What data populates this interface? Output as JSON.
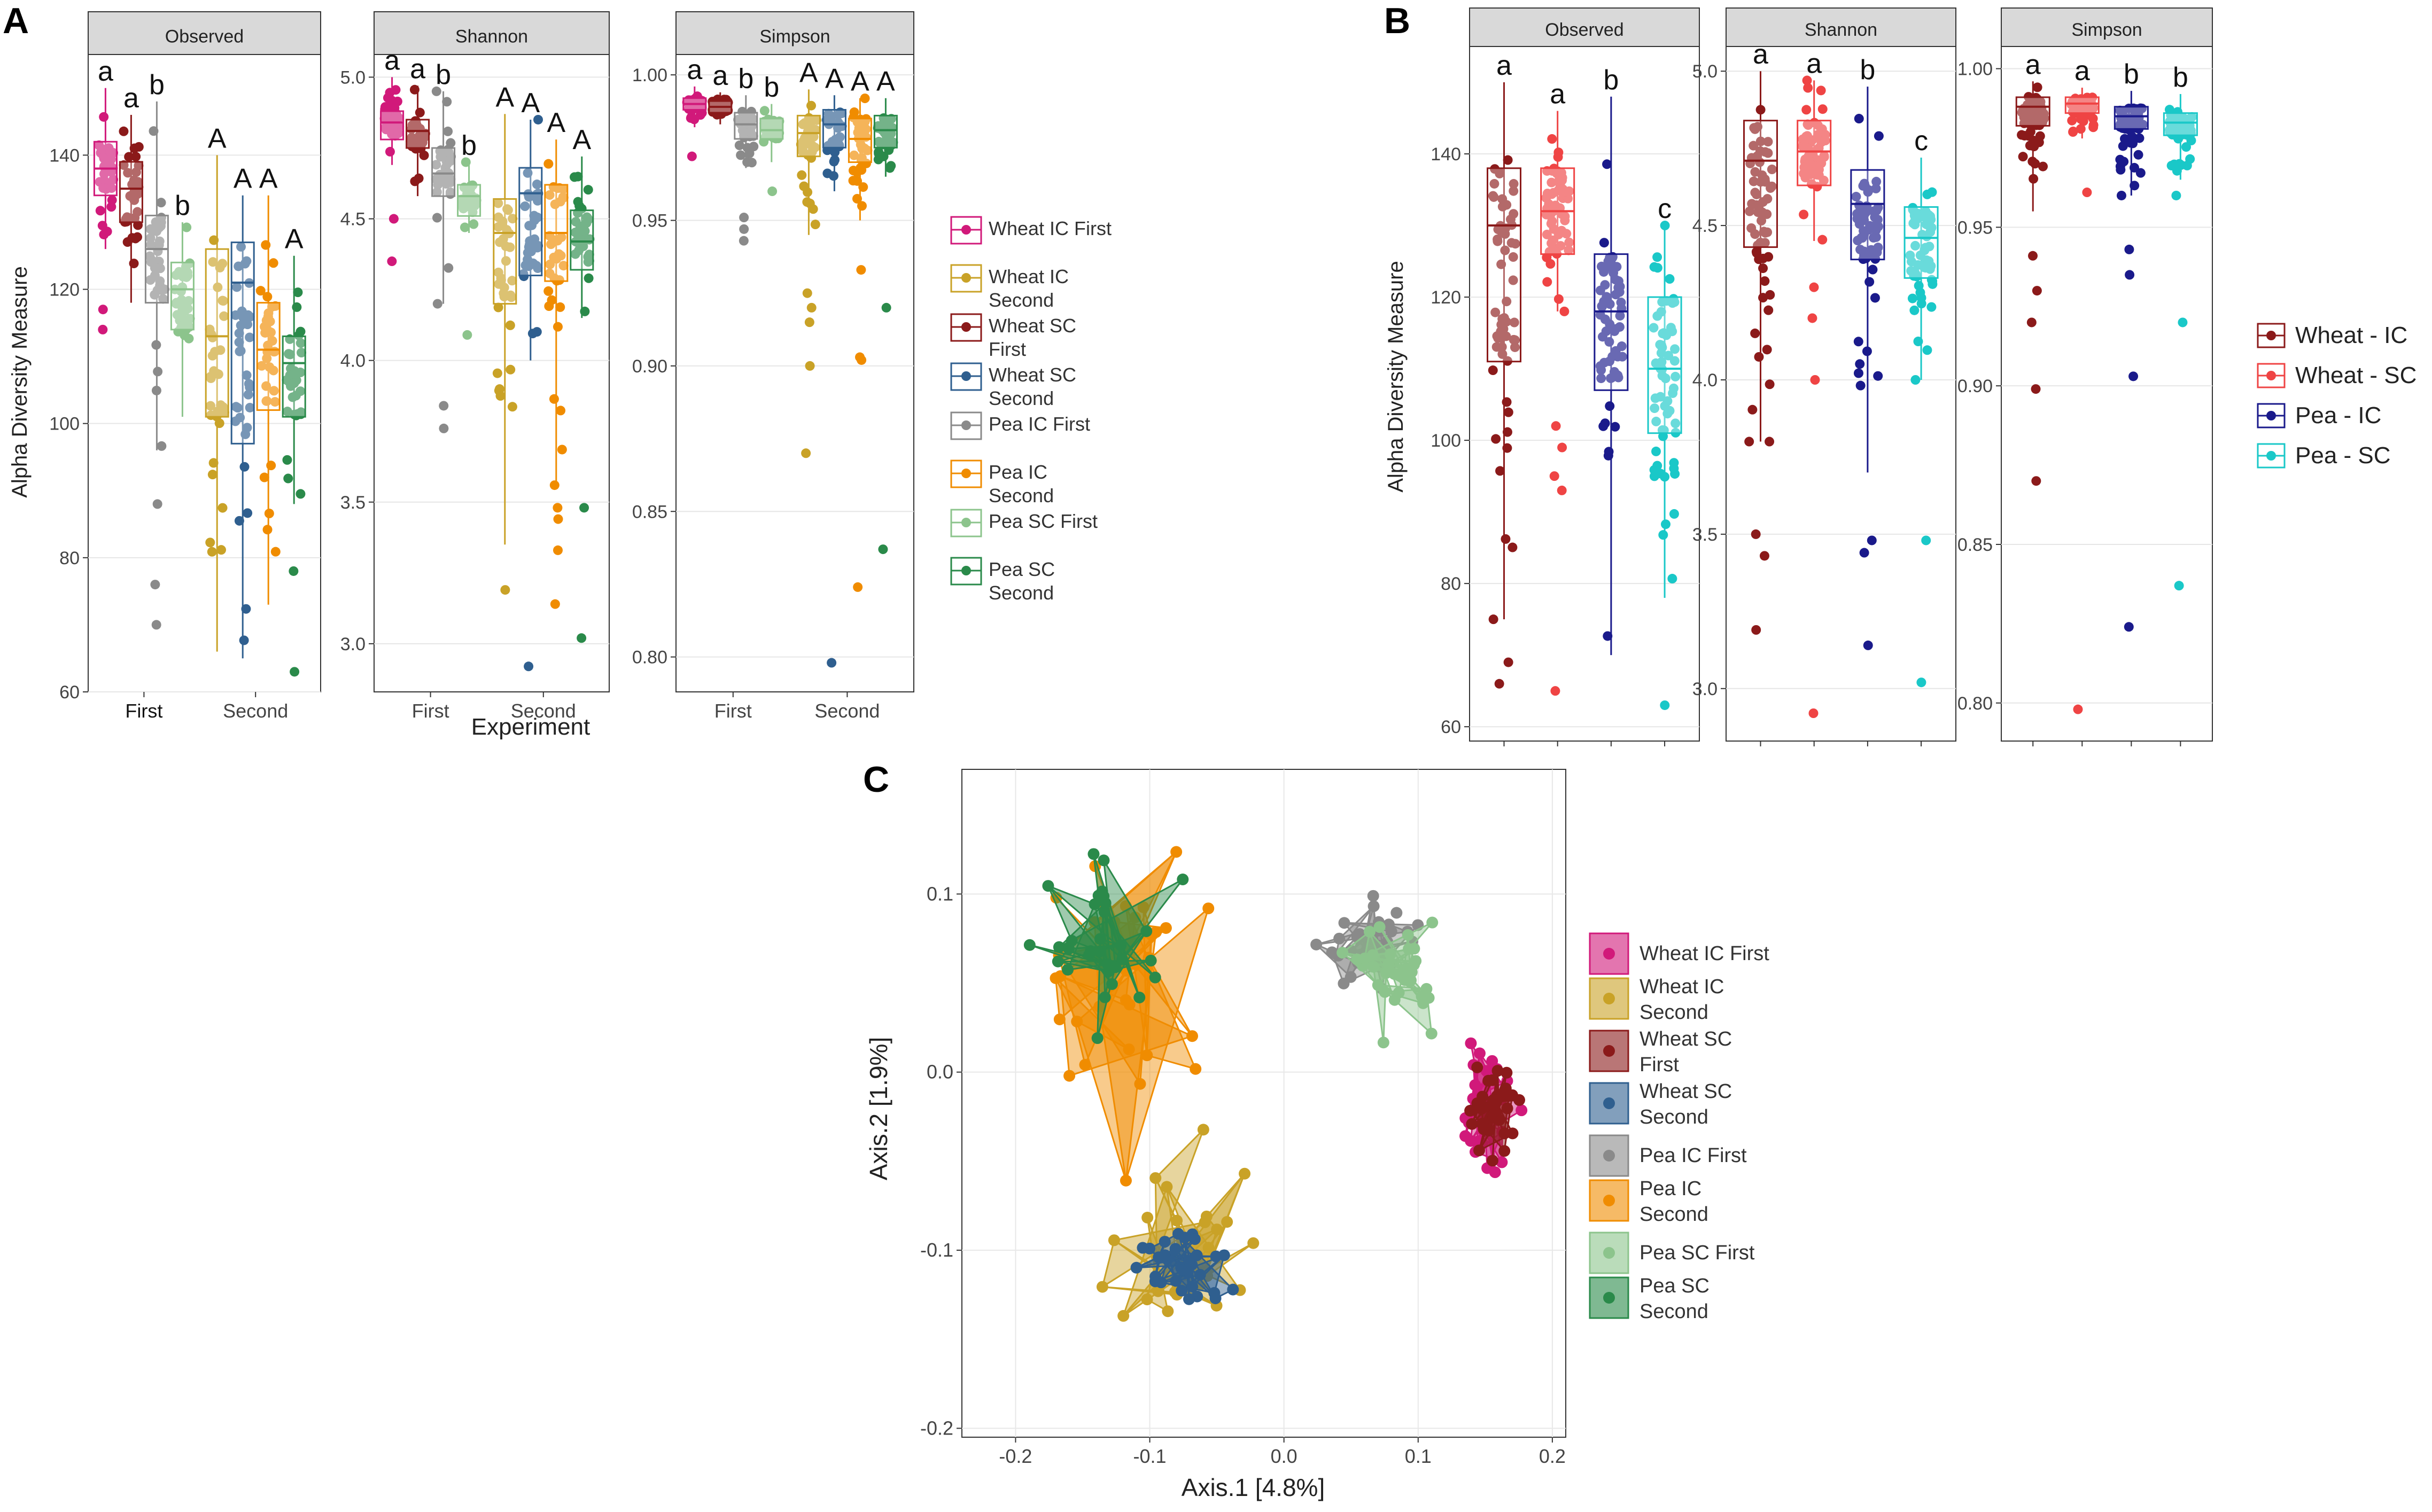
{
  "figure_labels": {
    "a": "A",
    "b": "B",
    "c": "C"
  },
  "panel_a": {
    "ylabel": "Alpha Diversity Measure",
    "xlabel": "Experiment",
    "x_categories": [
      "First",
      "Second"
    ],
    "facets": [
      "Observed",
      "Shannon",
      "Simpson"
    ],
    "legend": [
      {
        "label": [
          "Wheat IC First"
        ],
        "color": "#D1197A"
      },
      {
        "label": [
          "Wheat IC",
          "Second"
        ],
        "color": "#C9A227"
      },
      {
        "label": [
          "Wheat SC",
          "First"
        ],
        "color": "#8B1A1A"
      },
      {
        "label": [
          "Wheat SC",
          "Second"
        ],
        "color": "#2F5F8F"
      },
      {
        "label": [
          "Pea IC First"
        ],
        "color": "#8A8A8A"
      },
      {
        "label": [
          "Pea IC",
          "Second"
        ],
        "color": "#F08C00"
      },
      {
        "label": [
          "Pea SC First"
        ],
        "color": "#8CC48C"
      },
      {
        "label": [
          "Pea SC",
          "Second"
        ],
        "color": "#2A8A4A"
      }
    ]
  },
  "panel_b": {
    "ylabel": "Alpha Diversity Measure",
    "facets": [
      "Observed",
      "Shannon",
      "Simpson"
    ],
    "legend": [
      {
        "label": "Wheat - IC",
        "color": "#8B1A1A"
      },
      {
        "label": "Wheat - SC",
        "color": "#EF4444"
      },
      {
        "label": "Pea - IC",
        "color": "#1A1A8B"
      },
      {
        "label": "Pea - SC",
        "color": "#1AC8C8"
      }
    ]
  },
  "panel_c": {
    "xlabel": "Axis.1   [4.8%]",
    "ylabel": "Axis.2   [1.9%]",
    "legend": [
      {
        "label": [
          "Wheat IC First"
        ],
        "color": "#D1197A"
      },
      {
        "label": [
          "Wheat IC",
          "Second"
        ],
        "color": "#C9A227"
      },
      {
        "label": [
          "Wheat SC",
          "First"
        ],
        "color": "#8B1A1A"
      },
      {
        "label": [
          "Wheat SC",
          "Second"
        ],
        "color": "#2F5F8F"
      },
      {
        "label": [
          "Pea IC First"
        ],
        "color": "#8A8A8A"
      },
      {
        "label": [
          "Pea IC",
          "Second"
        ],
        "color": "#F08C00"
      },
      {
        "label": [
          "Pea SC First"
        ],
        "color": "#8CC48C"
      },
      {
        "label": [
          "Pea SC",
          "Second"
        ],
        "color": "#2A8A4A"
      }
    ]
  },
  "chart_data": [
    {
      "id": "A",
      "type": "box",
      "title": "A",
      "xlabel": "Experiment",
      "ylabel": "Alpha Diversity Measure",
      "categories": [
        "First",
        "Second"
      ],
      "facets": [
        {
          "name": "Observed",
          "ylim": [
            60,
            155
          ],
          "yticks": [
            60,
            80,
            100,
            120,
            140
          ],
          "tick_labels": [
            "60",
            "80",
            "100",
            "120",
            "140"
          ],
          "boxes": [
            {
              "group": "Wheat IC First",
              "x": "First",
              "q1": 134,
              "median": 138,
              "q3": 142,
              "min": 126,
              "max": 150,
              "outliers": [
                114,
                117
              ],
              "letter": "a"
            },
            {
              "group": "Wheat SC First",
              "x": "First",
              "q1": 130,
              "median": 135,
              "q3": 139,
              "min": 118,
              "max": 146,
              "outliers": [],
              "letter": "a"
            },
            {
              "group": "Pea IC First",
              "x": "First",
              "q1": 118,
              "median": 126,
              "q3": 131,
              "min": 96,
              "max": 148,
              "outliers": [
                88,
                76,
                70
              ],
              "letter": "b"
            },
            {
              "group": "Pea SC First",
              "x": "First",
              "q1": 114,
              "median": 120,
              "q3": 124,
              "min": 101,
              "max": 130,
              "outliers": [],
              "letter": "b"
            },
            {
              "group": "Wheat IC Second",
              "x": "Second",
              "q1": 101,
              "median": 113,
              "q3": 126,
              "min": 66,
              "max": 140,
              "outliers": [],
              "letter": "A"
            },
            {
              "group": "Wheat SC Second",
              "x": "Second",
              "q1": 97,
              "median": 121,
              "q3": 127,
              "min": 65,
              "max": 134,
              "outliers": [],
              "letter": "A"
            },
            {
              "group": "Pea IC Second",
              "x": "Second",
              "q1": 102,
              "median": 111,
              "q3": 118,
              "min": 73,
              "max": 134,
              "outliers": [],
              "letter": "A"
            },
            {
              "group": "Pea SC Second",
              "x": "Second",
              "q1": 101,
              "median": 109,
              "q3": 113,
              "min": 88,
              "max": 125,
              "outliers": [
                78,
                63
              ],
              "letter": "A"
            }
          ]
        },
        {
          "name": "Shannon",
          "ylim": [
            2.83,
            5.08
          ],
          "yticks": [
            3.0,
            3.5,
            4.0,
            4.5,
            5.0
          ],
          "tick_labels": [
            "3.0",
            "3.5",
            "4.0",
            "4.5",
            "5.0"
          ],
          "boxes": [
            {
              "group": "Wheat IC First",
              "x": "First",
              "q1": 4.78,
              "median": 4.84,
              "q3": 4.88,
              "min": 4.69,
              "max": 5.0,
              "outliers": [
                4.5,
                4.35
              ],
              "letter": "a"
            },
            {
              "group": "Wheat SC First",
              "x": "First",
              "q1": 4.75,
              "median": 4.81,
              "q3": 4.85,
              "min": 4.58,
              "max": 4.97,
              "outliers": [],
              "letter": "a"
            },
            {
              "group": "Pea IC First",
              "x": "First",
              "q1": 4.58,
              "median": 4.66,
              "q3": 4.75,
              "min": 4.2,
              "max": 4.95,
              "outliers": [
                3.84,
                3.76
              ],
              "letter": "b"
            },
            {
              "group": "Pea SC First",
              "x": "First",
              "q1": 4.51,
              "median": 4.58,
              "q3": 4.62,
              "min": 4.45,
              "max": 4.7,
              "outliers": [
                4.09
              ],
              "letter": "b"
            },
            {
              "group": "Wheat IC Second",
              "x": "Second",
              "q1": 4.2,
              "median": 4.45,
              "q3": 4.57,
              "min": 3.35,
              "max": 4.87,
              "outliers": [
                3.19
              ],
              "letter": "A"
            },
            {
              "group": "Wheat SC Second",
              "x": "Second",
              "q1": 4.3,
              "median": 4.59,
              "q3": 4.68,
              "min": 4.0,
              "max": 4.85,
              "outliers": [
                2.92
              ],
              "letter": "A"
            },
            {
              "group": "Pea IC Second",
              "x": "Second",
              "q1": 4.28,
              "median": 4.45,
              "q3": 4.62,
              "min": 3.55,
              "max": 4.78,
              "outliers": [
                3.48,
                3.44,
                3.33,
                3.14
              ],
              "letter": "A"
            },
            {
              "group": "Pea SC Second",
              "x": "Second",
              "q1": 4.32,
              "median": 4.42,
              "q3": 4.53,
              "min": 4.15,
              "max": 4.72,
              "outliers": [
                3.48,
                3.02
              ],
              "letter": "A"
            }
          ]
        },
        {
          "name": "Simpson",
          "ylim": [
            0.788,
            1.007
          ],
          "yticks": [
            0.8,
            0.85,
            0.9,
            0.95,
            1.0
          ],
          "tick_labels": [
            "0.80",
            "0.85",
            "0.90",
            "0.95",
            "1.00"
          ],
          "boxes": [
            {
              "group": "Wheat IC First",
              "x": "First",
              "q1": 0.988,
              "median": 0.99,
              "q3": 0.992,
              "min": 0.982,
              "max": 0.996,
              "outliers": [
                0.972
              ],
              "letter": "a"
            },
            {
              "group": "Wheat SC First",
              "x": "First",
              "q1": 0.987,
              "median": 0.989,
              "q3": 0.991,
              "min": 0.983,
              "max": 0.994,
              "outliers": [],
              "letter": "a"
            },
            {
              "group": "Pea IC First",
              "x": "First",
              "q1": 0.978,
              "median": 0.983,
              "q3": 0.987,
              "min": 0.968,
              "max": 0.993,
              "outliers": [
                0.951,
                0.947,
                0.943
              ],
              "letter": "b"
            },
            {
              "group": "Pea SC First",
              "x": "First",
              "q1": 0.978,
              "median": 0.981,
              "q3": 0.985,
              "min": 0.97,
              "max": 0.99,
              "outliers": [
                0.96
              ],
              "letter": "b"
            },
            {
              "group": "Wheat IC Second",
              "x": "Second",
              "q1": 0.972,
              "median": 0.98,
              "q3": 0.986,
              "min": 0.945,
              "max": 0.995,
              "outliers": [
                0.925,
                0.92,
                0.915,
                0.9,
                0.87
              ],
              "letter": "A"
            },
            {
              "group": "Wheat SC Second",
              "x": "Second",
              "q1": 0.975,
              "median": 0.983,
              "q3": 0.988,
              "min": 0.96,
              "max": 0.993,
              "outliers": [
                0.798
              ],
              "letter": "A"
            },
            {
              "group": "Pea IC Second",
              "x": "Second",
              "q1": 0.97,
              "median": 0.978,
              "q3": 0.985,
              "min": 0.95,
              "max": 0.992,
              "outliers": [
                0.933,
                0.903,
                0.902,
                0.824
              ],
              "letter": "A"
            },
            {
              "group": "Pea SC Second",
              "x": "Second",
              "q1": 0.975,
              "median": 0.981,
              "q3": 0.986,
              "min": 0.965,
              "max": 0.992,
              "outliers": [
                0.92,
                0.837
              ],
              "letter": "A"
            }
          ]
        }
      ]
    },
    {
      "id": "B",
      "type": "box",
      "title": "B",
      "ylabel": "Alpha Diversity Measure",
      "categories": [
        "Wheat - IC",
        "Wheat - SC",
        "Pea - IC",
        "Pea - SC"
      ],
      "facets": [
        {
          "name": "Observed",
          "ylim": [
            58,
            155
          ],
          "yticks": [
            60,
            80,
            100,
            120,
            140
          ],
          "tick_labels": [
            "60",
            "80",
            "100",
            "120",
            "140"
          ],
          "boxes": [
            {
              "group": "Wheat - IC",
              "q1": 111,
              "median": 130,
              "q3": 138,
              "min": 75,
              "max": 150,
              "outliers": [
                69,
                66
              ],
              "letter": "a"
            },
            {
              "group": "Wheat - SC",
              "q1": 126,
              "median": 132,
              "q3": 138,
              "min": 118,
              "max": 146,
              "outliers": [
                102,
                99,
                95,
                93,
                65
              ],
              "letter": "a"
            },
            {
              "group": "Pea IC",
              "q1": 107,
              "median": 118,
              "q3": 126,
              "min": 70,
              "max": 148,
              "outliers": [],
              "letter": "b"
            },
            {
              "group": "Pea - SC",
              "q1": 101,
              "median": 110,
              "q3": 120,
              "min": 78,
              "max": 130,
              "outliers": [
                63
              ],
              "letter": "c"
            }
          ]
        },
        {
          "name": "Shannon",
          "ylim": [
            2.83,
            5.08
          ],
          "yticks": [
            3.0,
            3.5,
            4.0,
            4.5,
            5.0
          ],
          "tick_labels": [
            "3.0",
            "3.5",
            "4.0",
            "4.5",
            "5.0"
          ],
          "boxes": [
            {
              "group": "Wheat - IC",
              "q1": 4.43,
              "median": 4.71,
              "q3": 4.84,
              "min": 3.8,
              "max": 5.0,
              "outliers": [
                3.5,
                3.43,
                3.19
              ],
              "letter": "a"
            },
            {
              "group": "Wheat - SC",
              "q1": 4.63,
              "median": 4.74,
              "q3": 4.84,
              "min": 4.45,
              "max": 4.97,
              "outliers": [
                4.3,
                4.2,
                4.0,
                2.92
              ],
              "letter": "a"
            },
            {
              "group": "Pea - IC",
              "q1": 4.39,
              "median": 4.57,
              "q3": 4.68,
              "min": 3.7,
              "max": 4.95,
              "outliers": [
                3.48,
                3.44,
                3.14
              ],
              "letter": "b"
            },
            {
              "group": "Pea - SC",
              "q1": 4.33,
              "median": 4.46,
              "q3": 4.56,
              "min": 4.0,
              "max": 4.72,
              "outliers": [
                3.48,
                3.02
              ],
              "letter": "c"
            }
          ]
        },
        {
          "name": "Simpson",
          "ylim": [
            0.788,
            1.007
          ],
          "yticks": [
            0.8,
            0.85,
            0.9,
            0.95,
            1.0
          ],
          "tick_labels": [
            "0.80",
            "0.85",
            "0.90",
            "0.95",
            "1.00"
          ],
          "boxes": [
            {
              "group": "Wheat - IC",
              "q1": 0.982,
              "median": 0.988,
              "q3": 0.991,
              "min": 0.955,
              "max": 0.996,
              "outliers": [
                0.941,
                0.93,
                0.92,
                0.899,
                0.87
              ],
              "letter": "a"
            },
            {
              "group": "Wheat - SC",
              "q1": 0.986,
              "median": 0.989,
              "q3": 0.991,
              "min": 0.978,
              "max": 0.994,
              "outliers": [
                0.961,
                0.798
              ],
              "letter": "a"
            },
            {
              "group": "Pea - IC",
              "q1": 0.981,
              "median": 0.985,
              "q3": 0.988,
              "min": 0.96,
              "max": 0.993,
              "outliers": [
                0.943,
                0.935,
                0.903,
                0.824
              ],
              "letter": "b"
            },
            {
              "group": "Pea - SC",
              "q1": 0.979,
              "median": 0.983,
              "q3": 0.986,
              "min": 0.965,
              "max": 0.992,
              "outliers": [
                0.96,
                0.92,
                0.837
              ],
              "letter": "b"
            }
          ]
        }
      ]
    },
    {
      "id": "C",
      "type": "scatter",
      "title": "C",
      "xlabel": "Axis.1   [4.8%]",
      "ylabel": "Axis.2   [1.9%]",
      "xlim": [
        -0.24,
        0.21
      ],
      "ylim": [
        -0.205,
        0.17
      ],
      "xticks": [
        -0.2,
        -0.1,
        0.0,
        0.1,
        0.2
      ],
      "xtick_labels": [
        "-0.2",
        "-0.1",
        "0.0",
        "0.1",
        "0.2"
      ],
      "yticks": [
        -0.2,
        -0.1,
        0.0,
        0.1
      ],
      "ytick_labels": [
        "-0.2",
        "-0.1",
        "0.0",
        "0.1"
      ],
      "series": [
        {
          "name": "Pea IC Second",
          "centroid": [
            -0.12,
            0.06
          ],
          "spread": [
            0.055,
            0.065
          ]
        },
        {
          "name": "Wheat IC Second",
          "centroid": [
            -0.07,
            -0.1
          ],
          "spread": [
            0.055,
            0.045
          ]
        },
        {
          "name": "Pea SC Second",
          "centroid": [
            -0.13,
            0.07
          ],
          "spread": [
            0.04,
            0.04
          ]
        },
        {
          "name": "Wheat SC Second",
          "centroid": [
            -0.08,
            -0.11
          ],
          "spread": [
            0.035,
            0.022
          ]
        },
        {
          "name": "Pea IC First",
          "centroid": [
            0.07,
            0.07
          ],
          "spread": [
            0.035,
            0.02
          ]
        },
        {
          "name": "Pea SC First",
          "centroid": [
            0.085,
            0.055
          ],
          "spread": [
            0.025,
            0.025
          ]
        },
        {
          "name": "Wheat IC First",
          "centroid": [
            0.15,
            -0.02
          ],
          "spread": [
            0.018,
            0.035
          ]
        },
        {
          "name": "Wheat SC First",
          "centroid": [
            0.155,
            -0.02
          ],
          "spread": [
            0.018,
            0.022
          ]
        }
      ]
    }
  ]
}
